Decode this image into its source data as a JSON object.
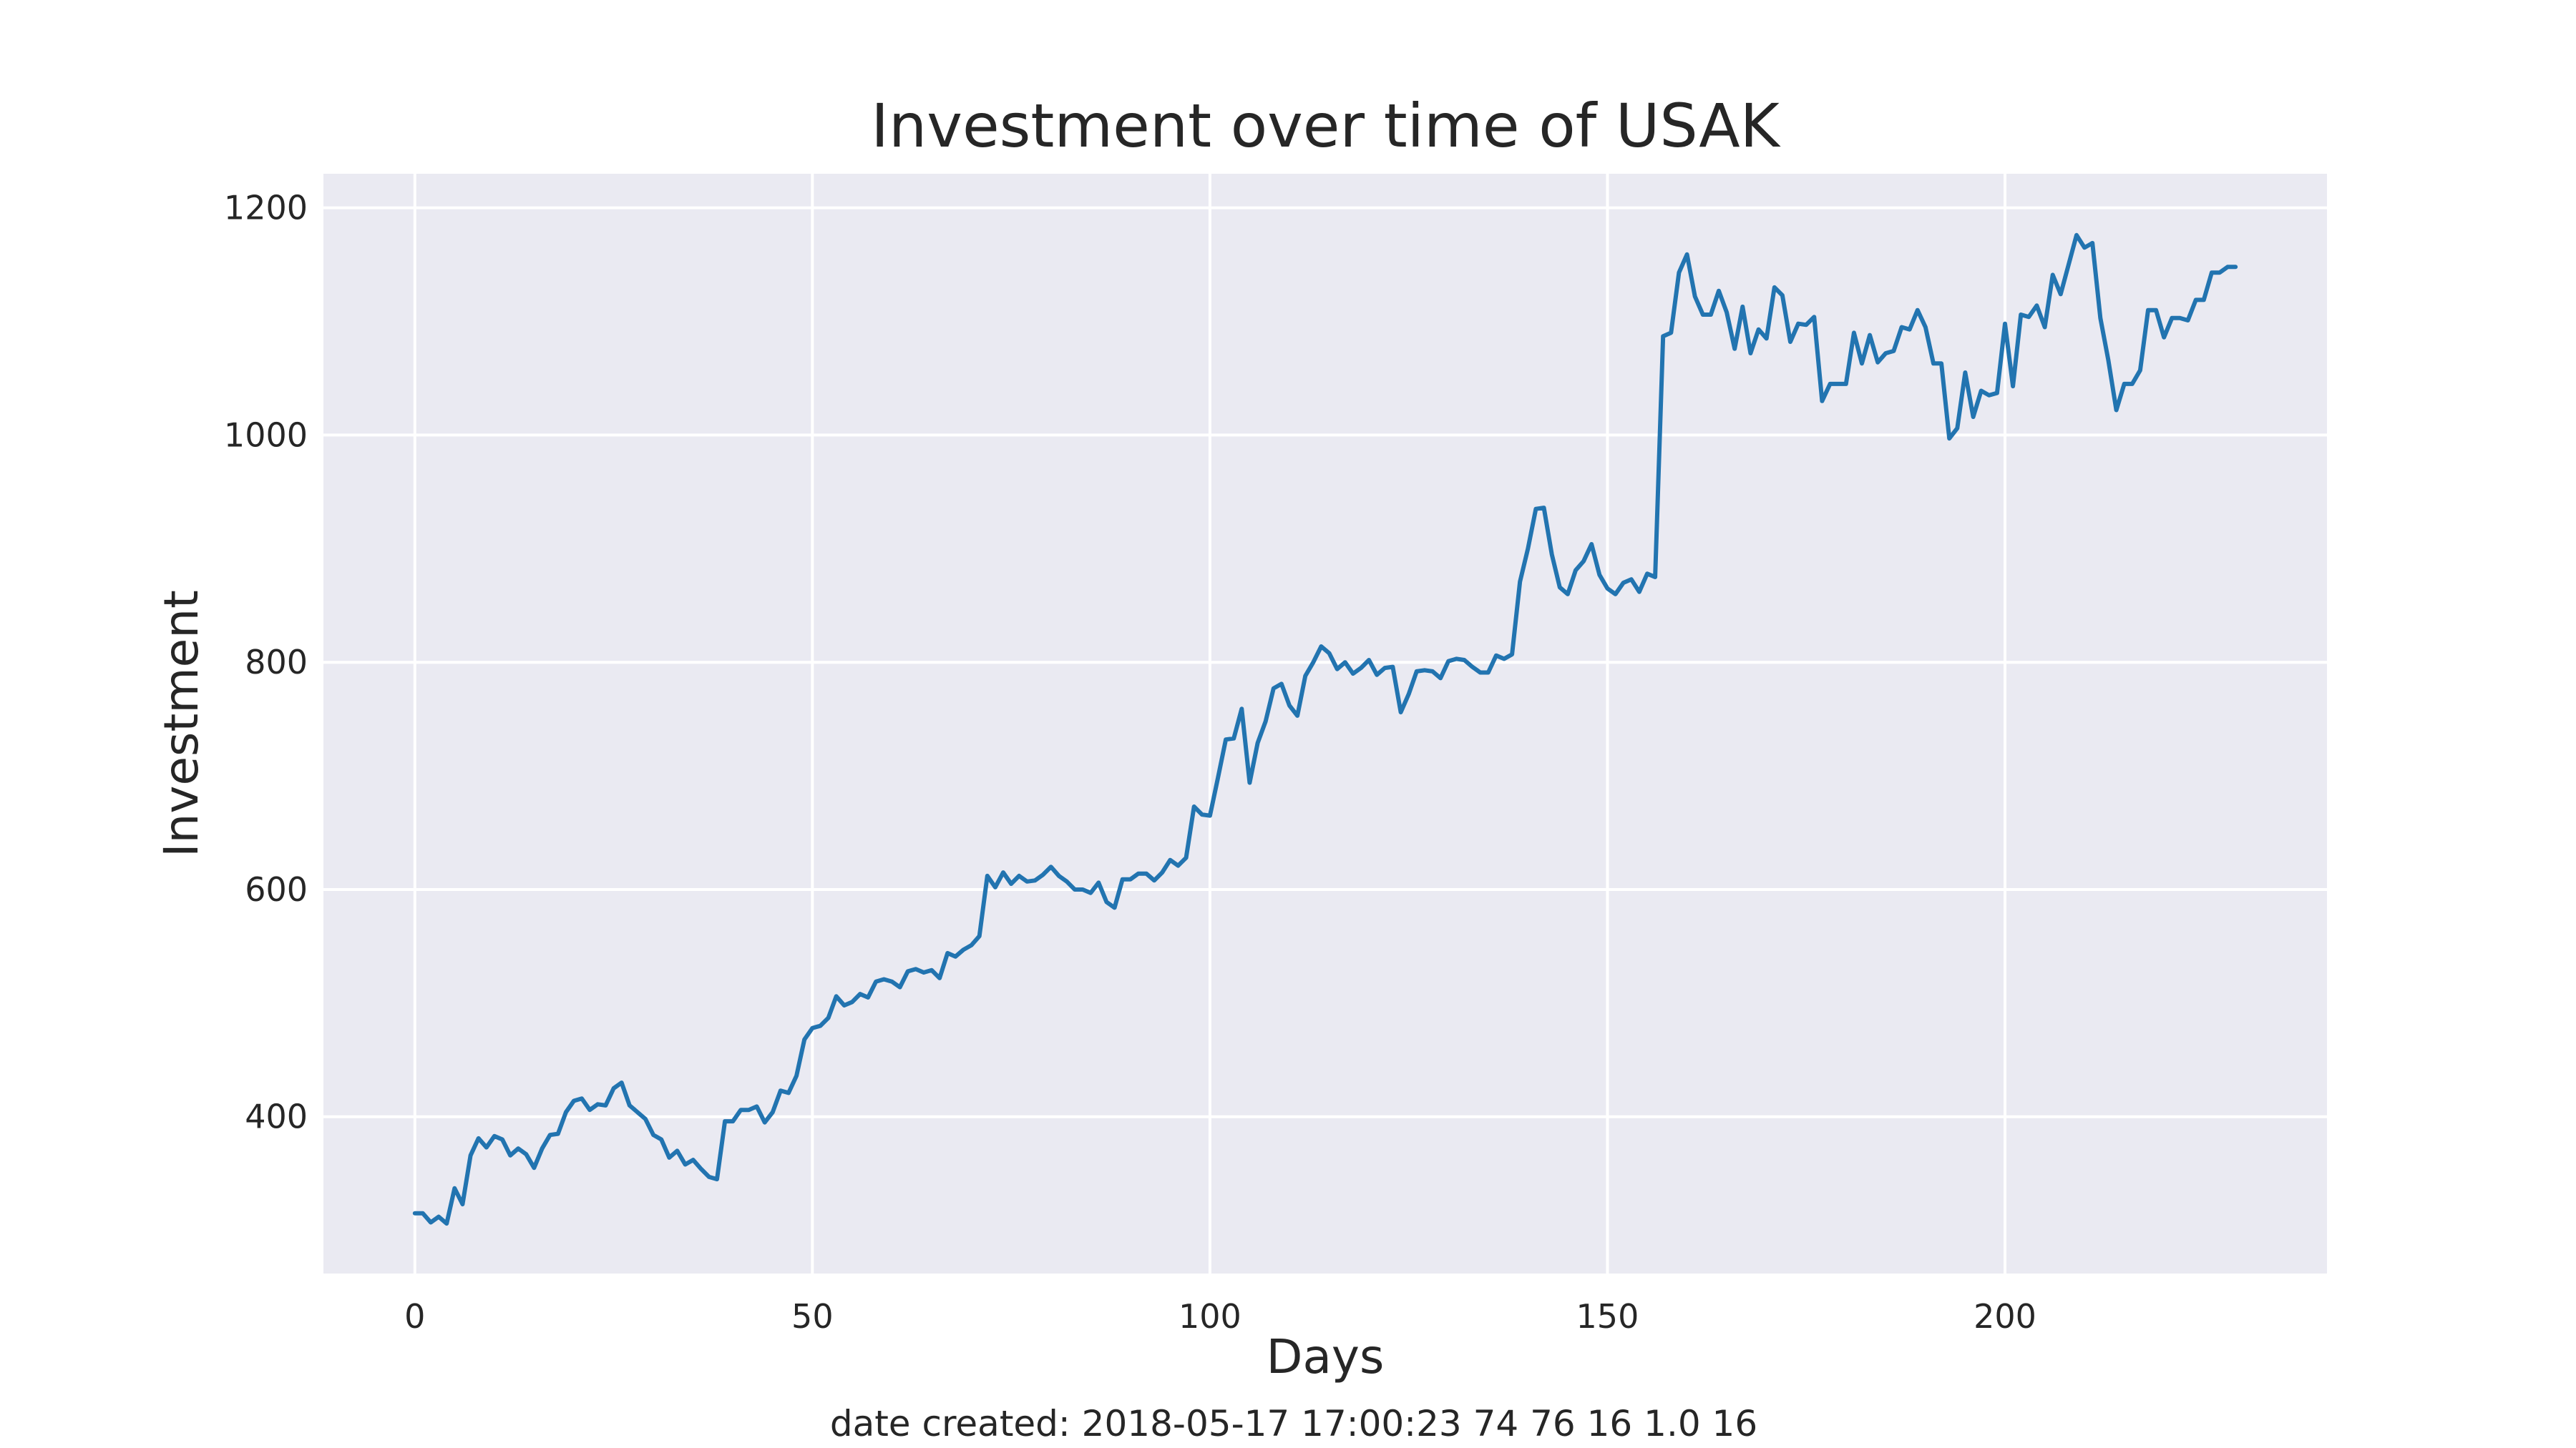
{
  "chart_data": {
    "type": "line",
    "title": "Investment over time of USAK",
    "xlabel": "Days",
    "ylabel": "Investment",
    "footer": "date created: 2018-05-17 17:00:23 74 76 16 1.0 16",
    "xlim": [
      -11.5,
      240.5
    ],
    "ylim": [
      262,
      1230
    ],
    "xticks": [
      0,
      50,
      100,
      150,
      200
    ],
    "yticks": [
      400,
      600,
      800,
      1000,
      1200
    ],
    "grid": true,
    "colors": {
      "line": "#2274b0",
      "plot_bg": "#eaeaf2",
      "grid": "#ffffff"
    },
    "series": [
      {
        "y": [
          315,
          315,
          307,
          312,
          306,
          337,
          323,
          366,
          381,
          373,
          383,
          380,
          366,
          372,
          367,
          355,
          372,
          384,
          385,
          404,
          414,
          416,
          406,
          411,
          410,
          425,
          430,
          410,
          404,
          398,
          384,
          380,
          364,
          370,
          358,
          362,
          354,
          347,
          345,
          396,
          396,
          406,
          406,
          409,
          395,
          404,
          423,
          421,
          436,
          468,
          478,
          480,
          487,
          506,
          498,
          501,
          508,
          505,
          519,
          521,
          519,
          514,
          528,
          530,
          527,
          529,
          522,
          544,
          541,
          547,
          551,
          559,
          612,
          602,
          615,
          605,
          612,
          607,
          608,
          613,
          620,
          612,
          607,
          600,
          600,
          597,
          606,
          589,
          584,
          609,
          609,
          614,
          614,
          608,
          615,
          626,
          621,
          628,
          673,
          666,
          665,
          698,
          732,
          733,
          759,
          694,
          729,
          748,
          777,
          781,
          762,
          753,
          788,
          800,
          814,
          808,
          794,
          800,
          790,
          795,
          802,
          789,
          795,
          796,
          756,
          772,
          792,
          793,
          792,
          786,
          801,
          803,
          802,
          796,
          791,
          791,
          806,
          803,
          807,
          871,
          900,
          935,
          936,
          895,
          866,
          860,
          881,
          889,
          904,
          877,
          865,
          860,
          870,
          873,
          862,
          878,
          875,
          1087,
          1090,
          1143,
          1159,
          1122,
          1106,
          1106,
          1127,
          1108,
          1076,
          1113,
          1072,
          1093,
          1085,
          1130,
          1123,
          1082,
          1098,
          1097,
          1104,
          1030,
          1045,
          1045,
          1045,
          1090,
          1063,
          1088,
          1064,
          1072,
          1074,
          1095,
          1093,
          1110,
          1095,
          1063,
          1063,
          997,
          1006,
          1055,
          1016,
          1039,
          1035,
          1037,
          1098,
          1043,
          1106,
          1104,
          1114,
          1095,
          1141,
          1124,
          1150,
          1176,
          1165,
          1169,
          1103,
          1066,
          1022,
          1045,
          1045,
          1057,
          1110,
          1110,
          1086,
          1103,
          1103,
          1101,
          1119,
          1119,
          1143,
          1143,
          1148,
          1148
        ]
      }
    ]
  }
}
